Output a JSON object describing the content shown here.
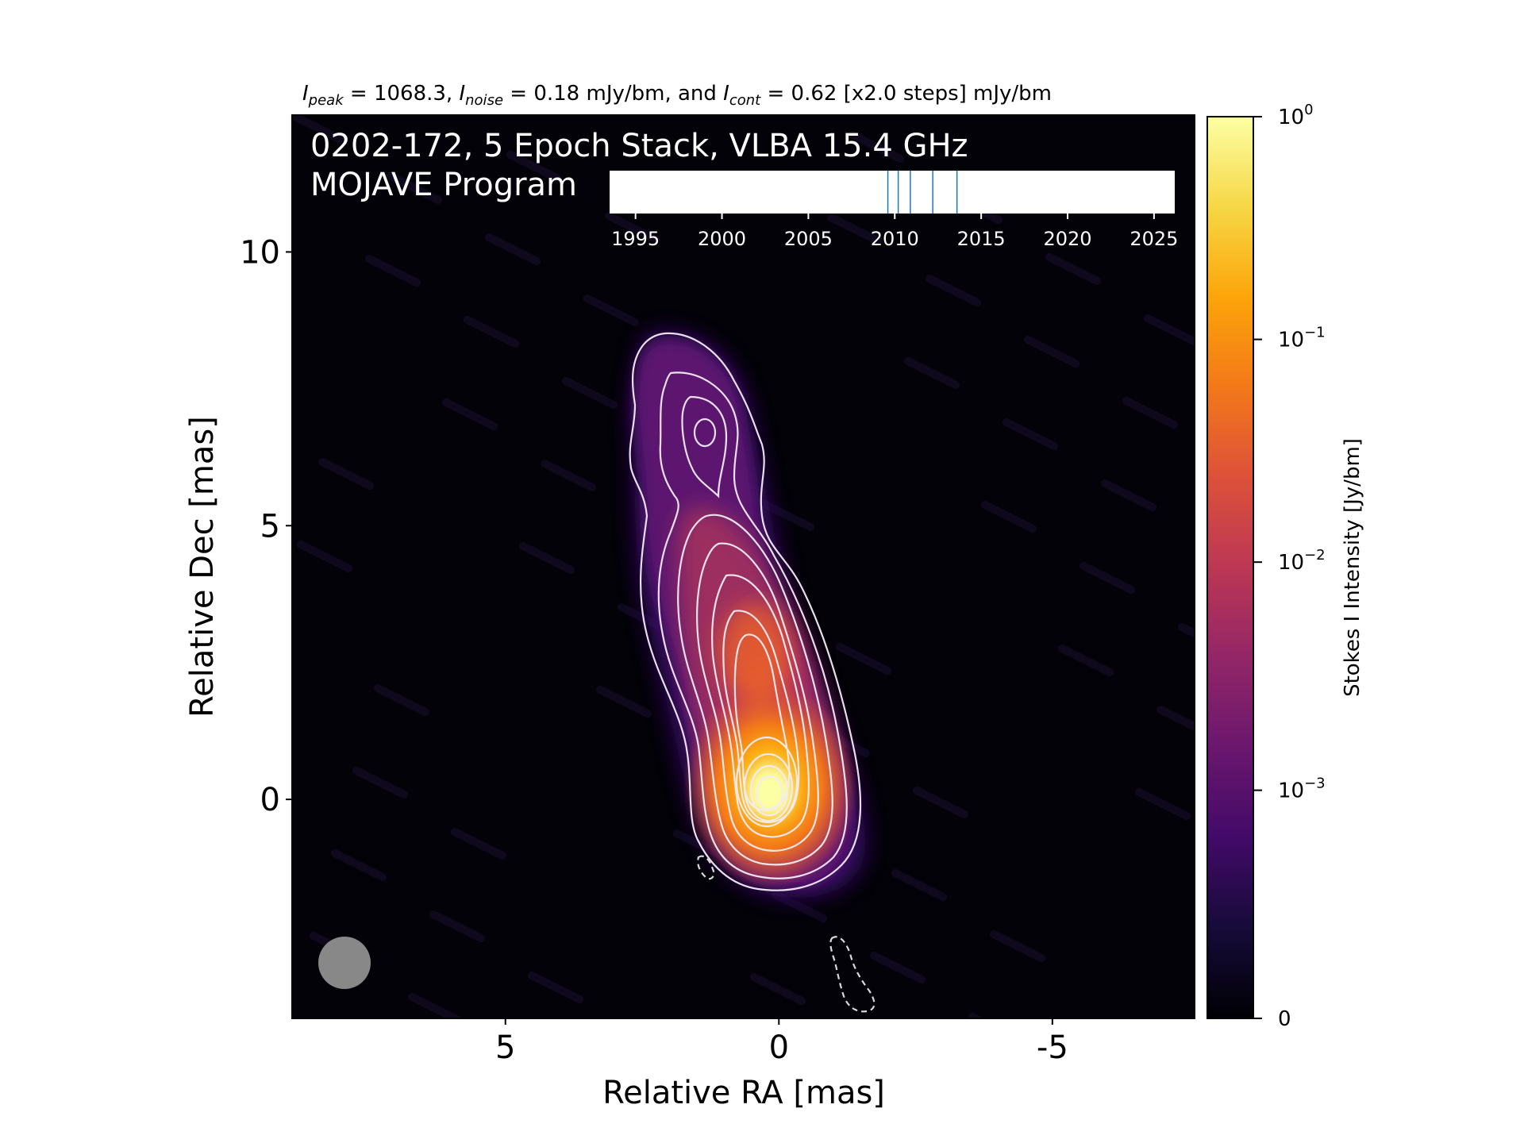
{
  "chart_data": {
    "type": "heatmap",
    "header": {
      "peak_sym": "I",
      "peak_sub": "peak",
      "peak_rest": " = 1068.3, ",
      "noise_sym": "I",
      "noise_sub": "noise",
      "noise_rest": " = 0.18 mJy/bm, and ",
      "cont_sym": "I",
      "cont_sub": "cont",
      "cont_rest": " = 0.62 [x2.0 steps] mJy/bm"
    },
    "title_line1": "0202-172, 5 Epoch Stack, VLBA 15.4 GHz",
    "title_line2": "MOJAVE Program",
    "xlabel": "Relative RA [mas]",
    "ylabel": "Relative Dec [mas]",
    "xlim": [
      8.9,
      -7.6
    ],
    "ylim": [
      -4.0,
      12.5
    ],
    "xticks": [
      5,
      0,
      -5
    ],
    "xtick_labels": [
      "5",
      "0",
      "-5"
    ],
    "yticks": [
      10,
      5,
      0
    ],
    "ytick_labels": [
      "10",
      "5",
      "0"
    ],
    "colorbar": {
      "label": "Stokes I Intensity [Jy/bm]",
      "colormap": "inferno",
      "tick_values": [
        1,
        0.1,
        0.01,
        0.001,
        0
      ],
      "tick_labels": [
        {
          "base": "10",
          "exp": "0"
        },
        {
          "base": "10",
          "exp": "−1"
        },
        {
          "base": "10",
          "exp": "−2"
        },
        {
          "base": "10",
          "exp": "−3"
        },
        {
          "base": "0",
          "exp": ""
        }
      ],
      "scale": "symlog"
    },
    "epoch_timeline": {
      "range": [
        1993.5,
        2026.2
      ],
      "tick_labels": [
        "1995",
        "2000",
        "2005",
        "2010",
        "2015",
        "2020",
        "2025"
      ],
      "tick_values": [
        1995,
        2000,
        2005,
        2010,
        2015,
        2020,
        2025
      ],
      "epochs": [
        2009.6,
        2010.2,
        2010.9,
        2012.2,
        2013.6
      ],
      "epoch_color": "#1f77b4"
    },
    "peak_position_mas": [
      0,
      0
    ],
    "contour_levels_mJy": [
      0.62,
      1.24,
      2.48,
      4.96,
      9.92,
      19.84,
      39.68,
      79.36,
      158.72,
      317.44,
      634.88
    ],
    "negative_contour_mJy": -0.62,
    "beam_color": "#888888",
    "contour_color": "#ffffff"
  }
}
